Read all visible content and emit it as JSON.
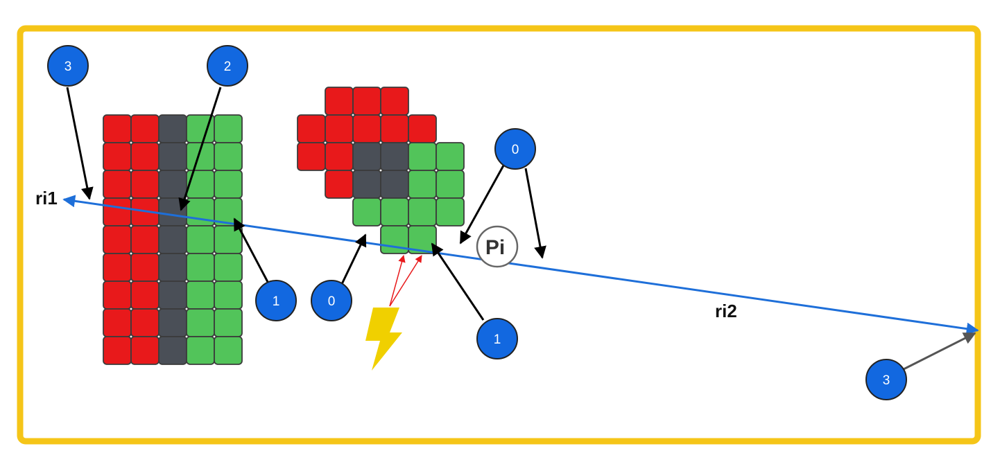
{
  "labels": {
    "ray_start": "ri1",
    "ray_end": "ri2",
    "point": "Pi",
    "markers": [
      "3",
      "2",
      "0",
      "1",
      "0",
      "1",
      "3"
    ]
  },
  "colors": {
    "frame": "#F5C518",
    "ray": "#1E6FD9",
    "marker_fill": "#1268E0",
    "red_cell": "#E8191B",
    "green_cell": "#52C45A",
    "gray_cell": "#4A4F57",
    "bolt": "#F0D000",
    "small_arrow": "#E8191B"
  },
  "icons": [
    "lightning-bolt-icon"
  ]
}
